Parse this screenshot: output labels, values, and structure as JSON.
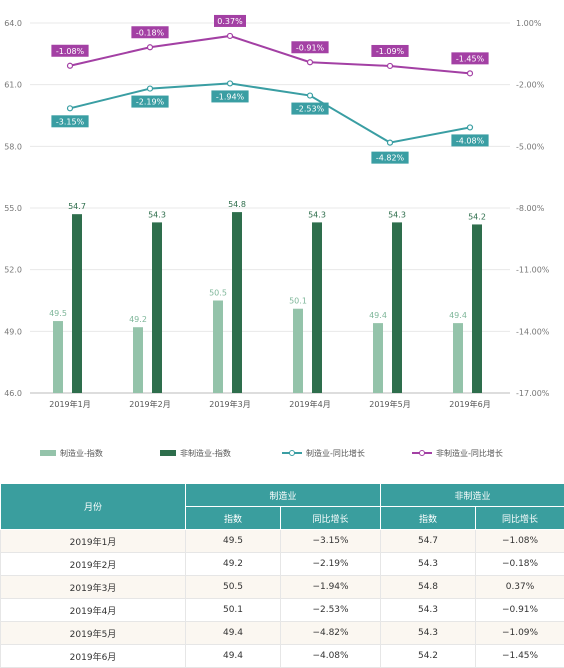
{
  "chart_data": {
    "type": "bar+line",
    "categories": [
      "2019年1月",
      "2019年2月",
      "2019年3月",
      "2019年4月",
      "2019年5月",
      "2019年6月"
    ],
    "left_axis": {
      "ylim": [
        46.0,
        64.0
      ],
      "ticks": [
        "46.0",
        "49.0",
        "52.0",
        "55.0",
        "58.0",
        "61.0",
        "64.0"
      ]
    },
    "right_axis": {
      "ylim": [
        -17.0,
        1.0
      ],
      "ticks": [
        "1.00%",
        "-2.00%",
        "-5.00%",
        "-8.00%",
        "-11.00%",
        "-14.00%",
        "-17.00%"
      ]
    },
    "bars": [
      {
        "name": "制造业-指数",
        "values": [
          49.5,
          49.2,
          50.5,
          50.1,
          49.4,
          49.4
        ],
        "labels": [
          "49.5",
          "49.2",
          "50.5",
          "50.1",
          "49.4",
          "49.4"
        ],
        "color": "#94c3aa"
      },
      {
        "name": "非制造业-指数",
        "values": [
          54.7,
          54.3,
          54.8,
          54.3,
          54.3,
          54.2
        ],
        "labels": [
          "54.7",
          "54.3",
          "54.8",
          "54.3",
          "54.3",
          "54.2"
        ],
        "color": "#2e6e4c"
      }
    ],
    "lines": [
      {
        "name": "制造业-同比增长",
        "values": [
          -3.15,
          -2.19,
          -1.94,
          -2.53,
          -4.82,
          -4.08
        ],
        "labels": [
          "-3.15%",
          "-2.19%",
          "-1.94%",
          "-2.53%",
          "-4.82%",
          "-4.08%"
        ],
        "color": "#3a9ea3"
      },
      {
        "name": "非制造业-同比增长",
        "values": [
          -1.08,
          -0.18,
          0.37,
          -0.91,
          -1.09,
          -1.45
        ],
        "labels": [
          "-1.08%",
          "-0.18%",
          "0.37%",
          "-0.91%",
          "-1.09%",
          "-1.45%"
        ],
        "color": "#a340a4"
      }
    ],
    "legend_position": "bottom"
  },
  "table": {
    "header_month": "月份",
    "group1": "制造业",
    "group2": "非制造业",
    "sub_index": "指数",
    "sub_growth": "同比增长",
    "rows": [
      {
        "month": "2019年1月",
        "m_index": "49.5",
        "m_growth": "−3.15%",
        "n_index": "54.7",
        "n_growth": "−1.08%"
      },
      {
        "month": "2019年2月",
        "m_index": "49.2",
        "m_growth": "−2.19%",
        "n_index": "54.3",
        "n_growth": "−0.18%"
      },
      {
        "month": "2019年3月",
        "m_index": "50.5",
        "m_growth": "−1.94%",
        "n_index": "54.8",
        "n_growth": "0.37%"
      },
      {
        "month": "2019年4月",
        "m_index": "50.1",
        "m_growth": "−2.53%",
        "n_index": "54.3",
        "n_growth": "−0.91%"
      },
      {
        "month": "2019年5月",
        "m_index": "49.4",
        "m_growth": "−4.82%",
        "n_index": "54.3",
        "n_growth": "−1.09%"
      },
      {
        "month": "2019年6月",
        "m_index": "49.4",
        "m_growth": "−4.08%",
        "n_index": "54.2",
        "n_growth": "−1.45%"
      }
    ]
  }
}
